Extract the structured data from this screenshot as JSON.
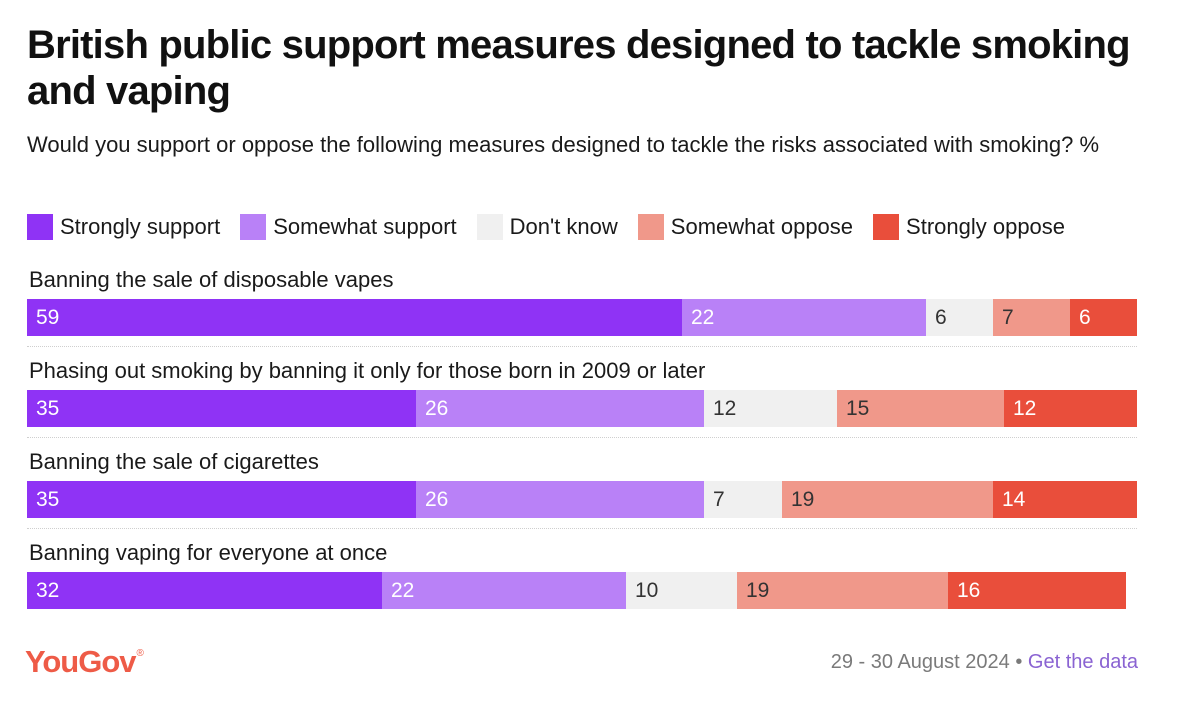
{
  "title": "British public support measures designed to tackle smoking and vaping",
  "subtitle": "Would you support or oppose the following measures designed to tackle the risks associated with smoking? %",
  "chart_data": {
    "type": "bar",
    "orientation": "horizontal",
    "stacked": true,
    "title": "British public support measures designed to tackle smoking and vaping",
    "subtitle": "Would you support or oppose the following measures designed to tackle the risks associated with smoking? %",
    "legend_position": "top",
    "grid": false,
    "categories": [
      "Banning the sale of disposable vapes",
      "Phasing out smoking by banning it only for those born in 2009 or later",
      "Banning the sale of cigarettes",
      "Banning vaping for everyone at once"
    ],
    "series": [
      {
        "name": "Strongly support",
        "color": "#8f33f5",
        "text_color": "#ffffff",
        "values": [
          59,
          35,
          35,
          32
        ]
      },
      {
        "name": "Somewhat support",
        "color": "#b981f7",
        "text_color": "#ffffff",
        "values": [
          22,
          26,
          26,
          22
        ]
      },
      {
        "name": "Don't know",
        "color": "#f0f0f0",
        "text_color": "#333333",
        "values": [
          6,
          12,
          7,
          10
        ]
      },
      {
        "name": "Somewhat oppose",
        "color": "#f0988a",
        "text_color": "#333333",
        "values": [
          7,
          15,
          19,
          19
        ]
      },
      {
        "name": "Strongly oppose",
        "color": "#e94e3b",
        "text_color": "#ffffff",
        "values": [
          6,
          12,
          14,
          16
        ]
      }
    ]
  },
  "footer": {
    "brand": "YouGov",
    "brand_mark": "®",
    "date": "29 - 30 August 2024",
    "separator": "•",
    "link": "Get the data"
  }
}
